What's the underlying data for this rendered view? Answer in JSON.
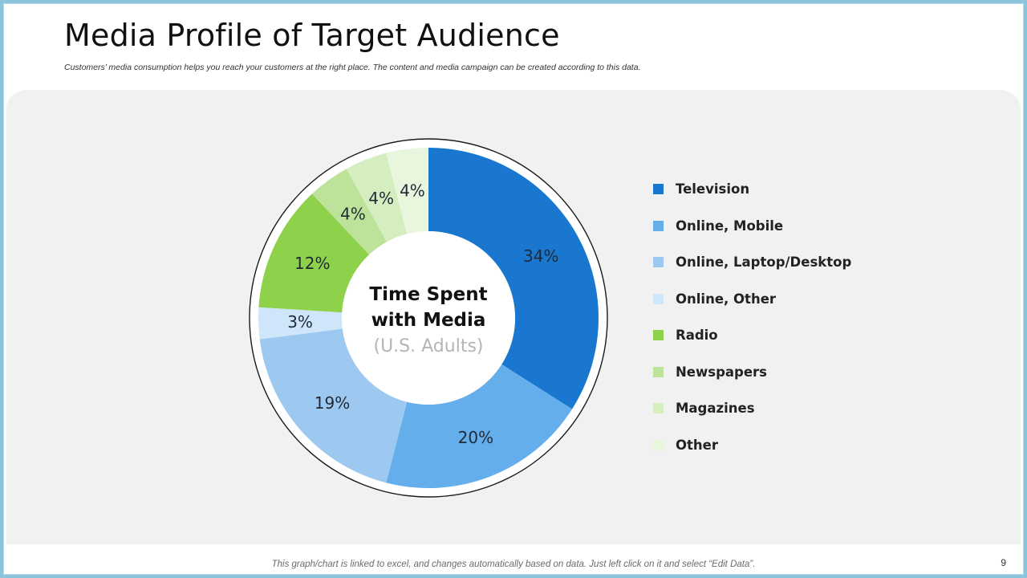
{
  "slide": {
    "title": "Media Profile of Target Audience",
    "subtitle": "Customers’ media consumption  helps you reach your customers at the right place. The content and media campaign  can be created according  to this data.",
    "footnote": "This graph/chart is linked to excel, and changes automatically based on data. Just left click on it and select “Edit Data”.",
    "page_number": "9"
  },
  "chart_data": {
    "type": "pie",
    "variant": "donut",
    "title": "Time Spent with Media",
    "center_title_lines": [
      "Time Spent",
      "with Media"
    ],
    "center_subtitle": "(U.S. Adults)",
    "categories": [
      "Television",
      "Online, Mobile",
      "Online, Laptop/Desktop",
      "Online, Other",
      "Radio",
      "Newspapers",
      "Magazines",
      "Other"
    ],
    "values": [
      34,
      20,
      19,
      3,
      12,
      4,
      4,
      4
    ],
    "labels": [
      "34%",
      "20%",
      "19%",
      "3%",
      "12%",
      "4%",
      "4%",
      "4%"
    ],
    "colors": [
      "#1977CF",
      "#65AEEC",
      "#9DC9F1",
      "#CFE5F9",
      "#8ED14B",
      "#BDE39A",
      "#D5EEBF",
      "#E9F6DE"
    ],
    "start": "12 o'clock",
    "direction": "clockwise",
    "legend_position": "right"
  }
}
